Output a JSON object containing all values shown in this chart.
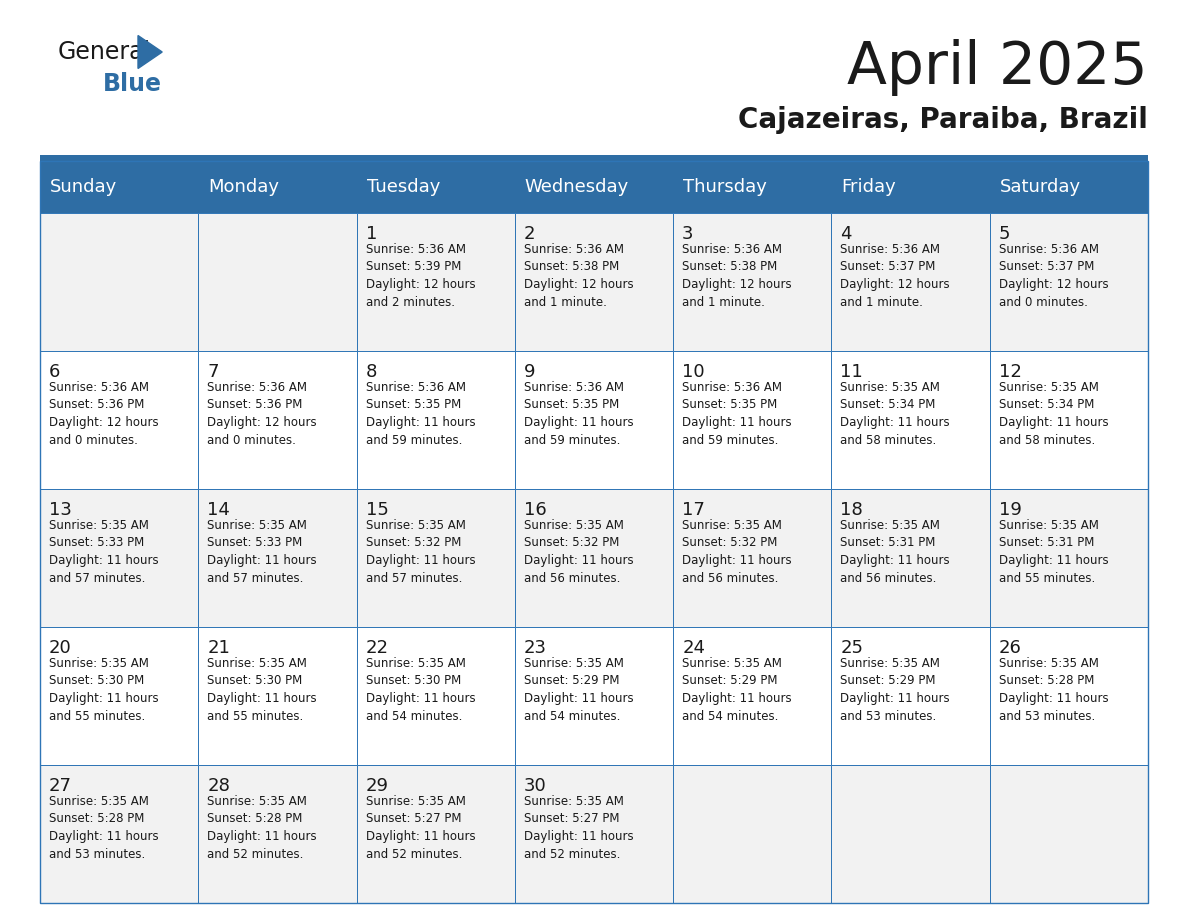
{
  "title": "April 2025",
  "subtitle": "Cajazeiras, Paraiba, Brazil",
  "header_color": "#2E6DA4",
  "header_text_color": "#FFFFFF",
  "border_color": "#2E75B6",
  "days_of_week": [
    "Sunday",
    "Monday",
    "Tuesday",
    "Wednesday",
    "Thursday",
    "Friday",
    "Saturday"
  ],
  "weeks": [
    [
      {
        "day": "",
        "text": ""
      },
      {
        "day": "",
        "text": ""
      },
      {
        "day": "1",
        "text": "Sunrise: 5:36 AM\nSunset: 5:39 PM\nDaylight: 12 hours\nand 2 minutes."
      },
      {
        "day": "2",
        "text": "Sunrise: 5:36 AM\nSunset: 5:38 PM\nDaylight: 12 hours\nand 1 minute."
      },
      {
        "day": "3",
        "text": "Sunrise: 5:36 AM\nSunset: 5:38 PM\nDaylight: 12 hours\nand 1 minute."
      },
      {
        "day": "4",
        "text": "Sunrise: 5:36 AM\nSunset: 5:37 PM\nDaylight: 12 hours\nand 1 minute."
      },
      {
        "day": "5",
        "text": "Sunrise: 5:36 AM\nSunset: 5:37 PM\nDaylight: 12 hours\nand 0 minutes."
      }
    ],
    [
      {
        "day": "6",
        "text": "Sunrise: 5:36 AM\nSunset: 5:36 PM\nDaylight: 12 hours\nand 0 minutes."
      },
      {
        "day": "7",
        "text": "Sunrise: 5:36 AM\nSunset: 5:36 PM\nDaylight: 12 hours\nand 0 minutes."
      },
      {
        "day": "8",
        "text": "Sunrise: 5:36 AM\nSunset: 5:35 PM\nDaylight: 11 hours\nand 59 minutes."
      },
      {
        "day": "9",
        "text": "Sunrise: 5:36 AM\nSunset: 5:35 PM\nDaylight: 11 hours\nand 59 minutes."
      },
      {
        "day": "10",
        "text": "Sunrise: 5:36 AM\nSunset: 5:35 PM\nDaylight: 11 hours\nand 59 minutes."
      },
      {
        "day": "11",
        "text": "Sunrise: 5:35 AM\nSunset: 5:34 PM\nDaylight: 11 hours\nand 58 minutes."
      },
      {
        "day": "12",
        "text": "Sunrise: 5:35 AM\nSunset: 5:34 PM\nDaylight: 11 hours\nand 58 minutes."
      }
    ],
    [
      {
        "day": "13",
        "text": "Sunrise: 5:35 AM\nSunset: 5:33 PM\nDaylight: 11 hours\nand 57 minutes."
      },
      {
        "day": "14",
        "text": "Sunrise: 5:35 AM\nSunset: 5:33 PM\nDaylight: 11 hours\nand 57 minutes."
      },
      {
        "day": "15",
        "text": "Sunrise: 5:35 AM\nSunset: 5:32 PM\nDaylight: 11 hours\nand 57 minutes."
      },
      {
        "day": "16",
        "text": "Sunrise: 5:35 AM\nSunset: 5:32 PM\nDaylight: 11 hours\nand 56 minutes."
      },
      {
        "day": "17",
        "text": "Sunrise: 5:35 AM\nSunset: 5:32 PM\nDaylight: 11 hours\nand 56 minutes."
      },
      {
        "day": "18",
        "text": "Sunrise: 5:35 AM\nSunset: 5:31 PM\nDaylight: 11 hours\nand 56 minutes."
      },
      {
        "day": "19",
        "text": "Sunrise: 5:35 AM\nSunset: 5:31 PM\nDaylight: 11 hours\nand 55 minutes."
      }
    ],
    [
      {
        "day": "20",
        "text": "Sunrise: 5:35 AM\nSunset: 5:30 PM\nDaylight: 11 hours\nand 55 minutes."
      },
      {
        "day": "21",
        "text": "Sunrise: 5:35 AM\nSunset: 5:30 PM\nDaylight: 11 hours\nand 55 minutes."
      },
      {
        "day": "22",
        "text": "Sunrise: 5:35 AM\nSunset: 5:30 PM\nDaylight: 11 hours\nand 54 minutes."
      },
      {
        "day": "23",
        "text": "Sunrise: 5:35 AM\nSunset: 5:29 PM\nDaylight: 11 hours\nand 54 minutes."
      },
      {
        "day": "24",
        "text": "Sunrise: 5:35 AM\nSunset: 5:29 PM\nDaylight: 11 hours\nand 54 minutes."
      },
      {
        "day": "25",
        "text": "Sunrise: 5:35 AM\nSunset: 5:29 PM\nDaylight: 11 hours\nand 53 minutes."
      },
      {
        "day": "26",
        "text": "Sunrise: 5:35 AM\nSunset: 5:28 PM\nDaylight: 11 hours\nand 53 minutes."
      }
    ],
    [
      {
        "day": "27",
        "text": "Sunrise: 5:35 AM\nSunset: 5:28 PM\nDaylight: 11 hours\nand 53 minutes."
      },
      {
        "day": "28",
        "text": "Sunrise: 5:35 AM\nSunset: 5:28 PM\nDaylight: 11 hours\nand 52 minutes."
      },
      {
        "day": "29",
        "text": "Sunrise: 5:35 AM\nSunset: 5:27 PM\nDaylight: 11 hours\nand 52 minutes."
      },
      {
        "day": "30",
        "text": "Sunrise: 5:35 AM\nSunset: 5:27 PM\nDaylight: 11 hours\nand 52 minutes."
      },
      {
        "day": "",
        "text": ""
      },
      {
        "day": "",
        "text": ""
      },
      {
        "day": "",
        "text": ""
      }
    ]
  ],
  "fig_width": 11.88,
  "fig_height": 9.18,
  "dpi": 100
}
